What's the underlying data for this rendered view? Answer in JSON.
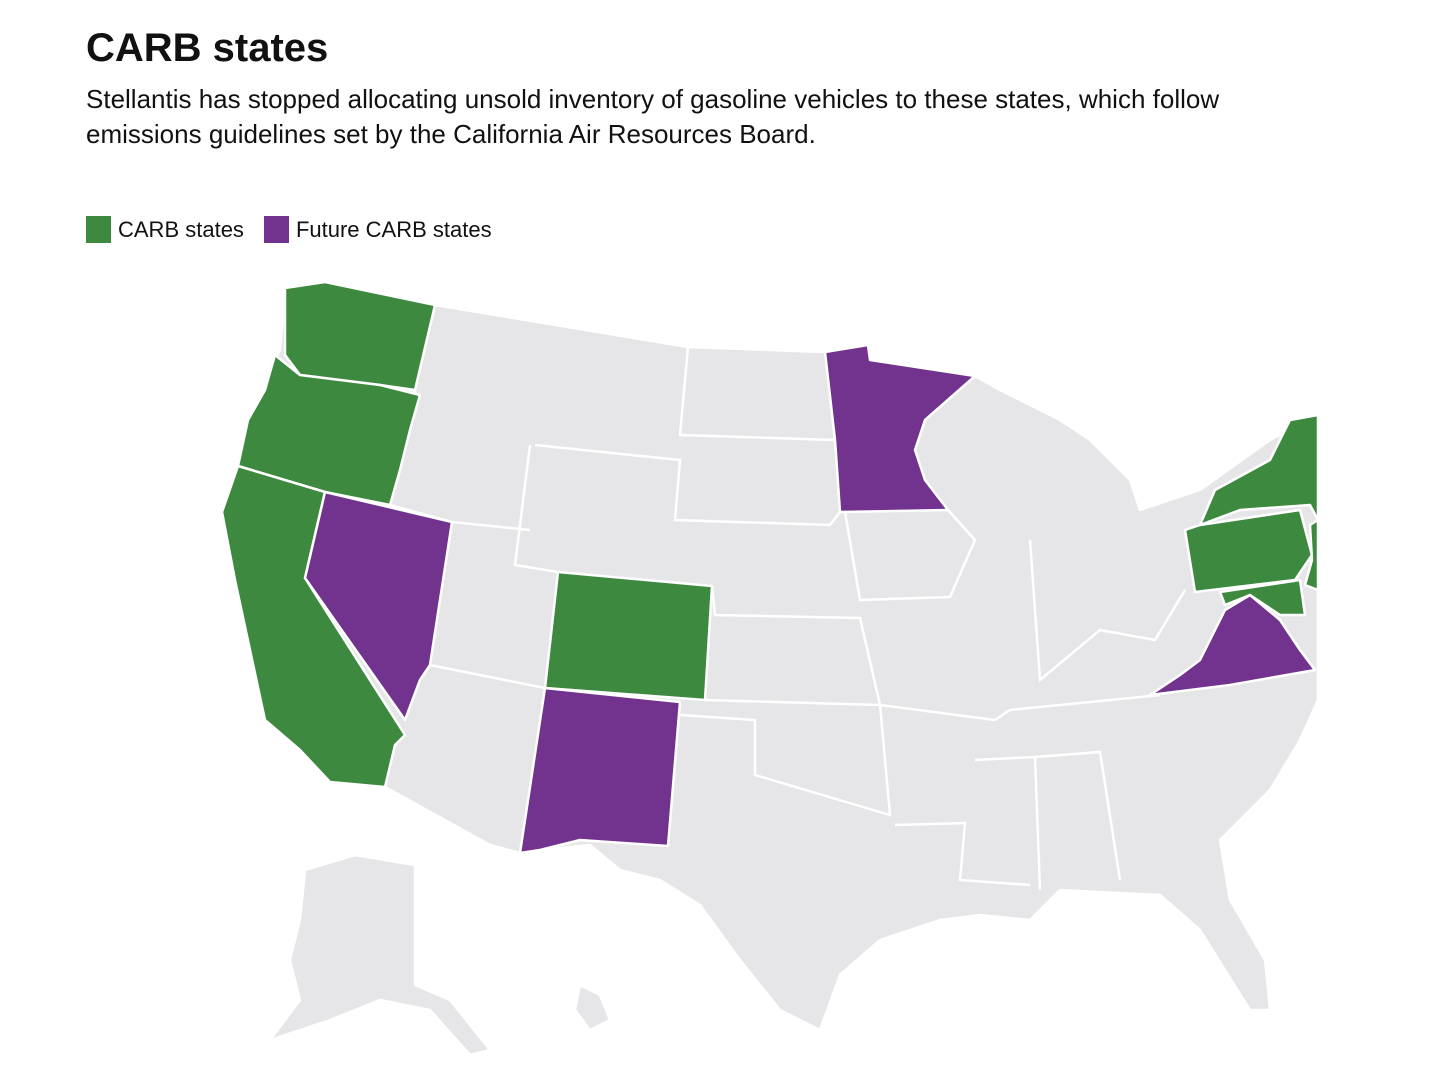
{
  "title": "CARB states",
  "subtitle": "Stellantis has stopped allocating unsold inventory of gasoline vehicles to these states, which follow emissions guidelines set by the California Air Resources Board.",
  "legend": [
    {
      "name": "CARB states",
      "color": "#3d8940"
    },
    {
      "name": "Future CARB states",
      "color": "#72338f"
    }
  ],
  "base_color": "#e6e6e8"
}
